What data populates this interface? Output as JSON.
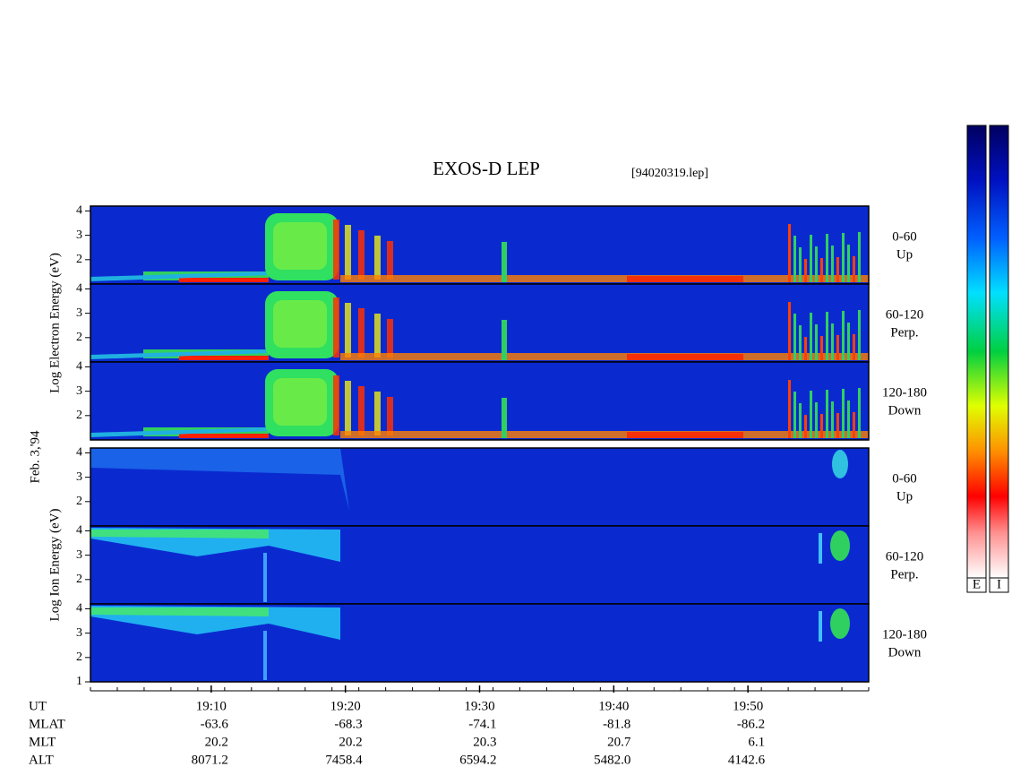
{
  "chart_data": {
    "type": "spectrogram",
    "title": "EXOS-D LEP",
    "subtitle": "[94020319.lep]",
    "date_label": "Feb. 3,'94",
    "xlim": [
      "19:01",
      "19:59"
    ],
    "xticks": [
      "19:10",
      "19:20",
      "19:30",
      "19:40",
      "19:50"
    ],
    "panel_groups": [
      {
        "ylabel": "Log Electron Energy (eV)",
        "panels": [
          {
            "label": "0-60",
            "sublabel": "Up",
            "ylim": [
              1,
              4.2
            ],
            "yticks": [
              2,
              3,
              4
            ]
          },
          {
            "label": "60-120",
            "sublabel": "Perp.",
            "ylim": [
              1,
              4.2
            ],
            "yticks": [
              2,
              3,
              4
            ]
          },
          {
            "label": "120-180",
            "sublabel": "Down",
            "ylim": [
              1,
              4.2
            ],
            "yticks": [
              2,
              3,
              4
            ]
          }
        ]
      },
      {
        "ylabel": "Log Ion Energy (eV)",
        "panels": [
          {
            "label": "0-60",
            "sublabel": "Up",
            "ylim": [
              1,
              4.2
            ],
            "yticks": [
              2,
              3,
              4
            ]
          },
          {
            "label": "60-120",
            "sublabel": "Perp.",
            "ylim": [
              1,
              4.2
            ],
            "yticks": [
              2,
              3,
              4
            ]
          },
          {
            "label": "120-180",
            "sublabel": "Down",
            "ylim": [
              1,
              4.2
            ],
            "yticks": [
              1,
              2,
              3,
              4
            ]
          }
        ]
      }
    ],
    "colorbar_labels": [
      "E",
      "I"
    ],
    "footer": {
      "x_label": "UT",
      "rows": [
        {
          "label": "MLAT",
          "values": [
            "-63.6",
            "-68.3",
            "-74.1",
            "-81.8",
            "-86.2"
          ]
        },
        {
          "label": "MLT",
          "values": [
            "20.2",
            "20.2",
            "20.3",
            "20.7",
            "6.1"
          ]
        },
        {
          "label": "ALT",
          "values": [
            "8071.2",
            "7458.4",
            "6594.2",
            "5482.0",
            "4142.6"
          ]
        }
      ]
    }
  }
}
